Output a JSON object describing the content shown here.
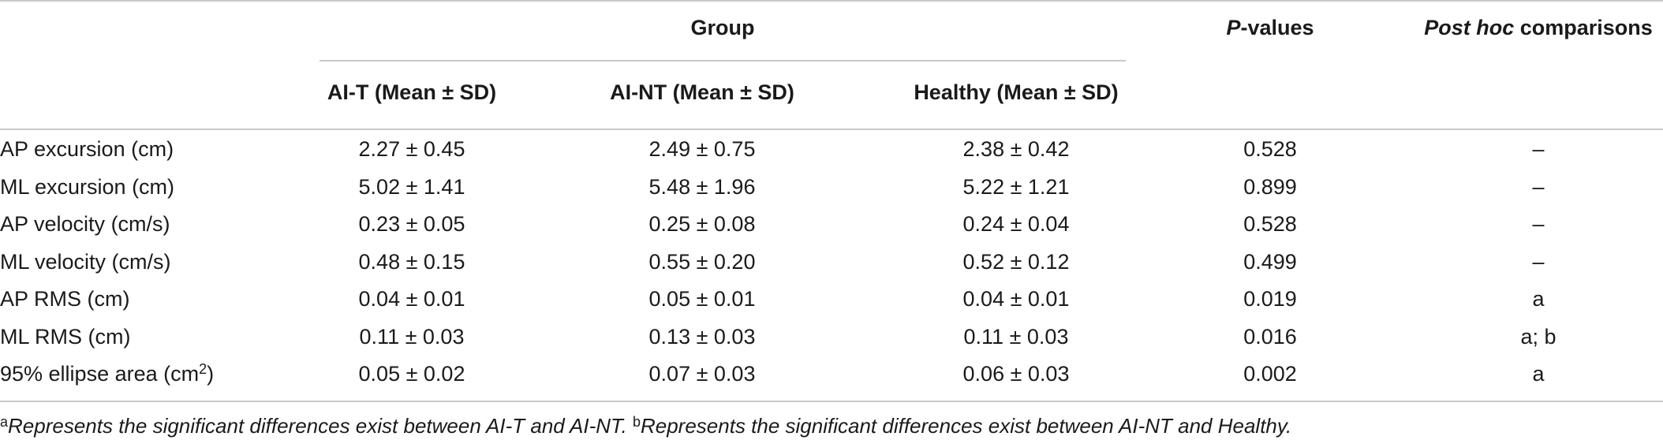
{
  "header": {
    "group_label": "Group",
    "pvalues_italic": "P",
    "pvalues_rest": "-values",
    "posthoc_italic": "Post hoc",
    "posthoc_rest": " comparisons",
    "col_ait": "AI-T (Mean ± SD)",
    "col_aint": "AI-NT (Mean ± SD)",
    "col_healthy": "Healthy (Mean ± SD)"
  },
  "rows": [
    {
      "label": "AP excursion (cm)",
      "ait": "2.27 ± 0.45",
      "aint": "2.49 ± 0.75",
      "healthy": "2.38 ± 0.42",
      "p": "0.528",
      "posthoc": "–"
    },
    {
      "label": "ML excursion (cm)",
      "ait": "5.02 ± 1.41",
      "aint": "5.48 ± 1.96",
      "healthy": "5.22 ± 1.21",
      "p": "0.899",
      "posthoc": "–"
    },
    {
      "label": "AP velocity (cm/s)",
      "ait": "0.23 ± 0.05",
      "aint": "0.25 ± 0.08",
      "healthy": "0.24 ± 0.04",
      "p": "0.528",
      "posthoc": "–"
    },
    {
      "label": "ML velocity (cm/s)",
      "ait": "0.48 ± 0.15",
      "aint": "0.55 ± 0.20",
      "healthy": "0.52 ± 0.12",
      "p": "0.499",
      "posthoc": "–"
    },
    {
      "label": "AP RMS (cm)",
      "ait": "0.04 ± 0.01",
      "aint": "0.05 ± 0.01",
      "healthy": "0.04 ± 0.01",
      "p": "0.019",
      "posthoc": "a"
    },
    {
      "label": "ML RMS (cm)",
      "ait": "0.11 ± 0.03",
      "aint": "0.13 ± 0.03",
      "healthy": "0.11 ± 0.03",
      "p": "0.016",
      "posthoc": "a; b"
    },
    {
      "label_pre": "95% ellipse area (cm",
      "label_sup": "2",
      "label_post": ")",
      "ait": "0.05 ± 0.02",
      "aint": "0.07 ± 0.03",
      "healthy": "0.06 ± 0.03",
      "p": "0.002",
      "posthoc": "a"
    }
  ],
  "footnote": {
    "a_mark": "a",
    "a_text": "Represents the significant differences exist between AI-T and AI-NT. ",
    "b_mark": "b",
    "b_text": "Represents the significant differences exist between AI-NT and Healthy."
  }
}
